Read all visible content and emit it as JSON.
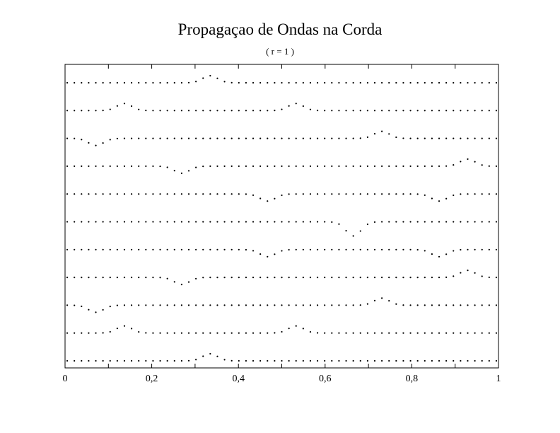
{
  "chart_data": {
    "type": "scatter",
    "title": "Propagaçao de Ondas na Corda",
    "subtitle": "( r = 1 )",
    "xlabel": "",
    "ylabel": "",
    "xlim": [
      0,
      1
    ],
    "x_ticks": [
      "0",
      "0,2",
      "0,4",
      "0,6",
      "0,8",
      "1"
    ],
    "x_tick_values": [
      0,
      0.2,
      0.4,
      0.6,
      0.8,
      1
    ],
    "grid": false,
    "legend": "none",
    "marker_color": "#000000",
    "point_count_per_series": 61,
    "amplitude": 1,
    "pulse_width": 0.025,
    "series": [
      {
        "pulses": [
          {
            "center": 0.333,
            "sign": 1
          }
        ]
      },
      {
        "pulses": [
          {
            "center": 0.133,
            "sign": 1
          },
          {
            "center": 0.533,
            "sign": 1
          }
        ]
      },
      {
        "pulses": [
          {
            "center": 0.067,
            "sign": -1
          },
          {
            "center": 0.733,
            "sign": 1
          }
        ]
      },
      {
        "pulses": [
          {
            "center": 0.267,
            "sign": -1
          },
          {
            "center": 0.933,
            "sign": 1
          }
        ]
      },
      {
        "pulses": [
          {
            "center": 0.467,
            "sign": -1
          },
          {
            "center": 0.867,
            "sign": -1
          }
        ]
      },
      {
        "pulses": [
          {
            "center": 0.667,
            "sign": -2
          }
        ]
      },
      {
        "pulses": [
          {
            "center": 0.467,
            "sign": -1
          },
          {
            "center": 0.867,
            "sign": -1
          }
        ]
      },
      {
        "pulses": [
          {
            "center": 0.267,
            "sign": -1
          },
          {
            "center": 0.933,
            "sign": 1
          }
        ]
      },
      {
        "pulses": [
          {
            "center": 0.067,
            "sign": -1
          },
          {
            "center": 0.733,
            "sign": 1
          }
        ]
      },
      {
        "pulses": [
          {
            "center": 0.133,
            "sign": 1
          },
          {
            "center": 0.533,
            "sign": 1
          }
        ]
      },
      {
        "pulses": [
          {
            "center": 0.333,
            "sign": 1
          }
        ]
      }
    ]
  }
}
